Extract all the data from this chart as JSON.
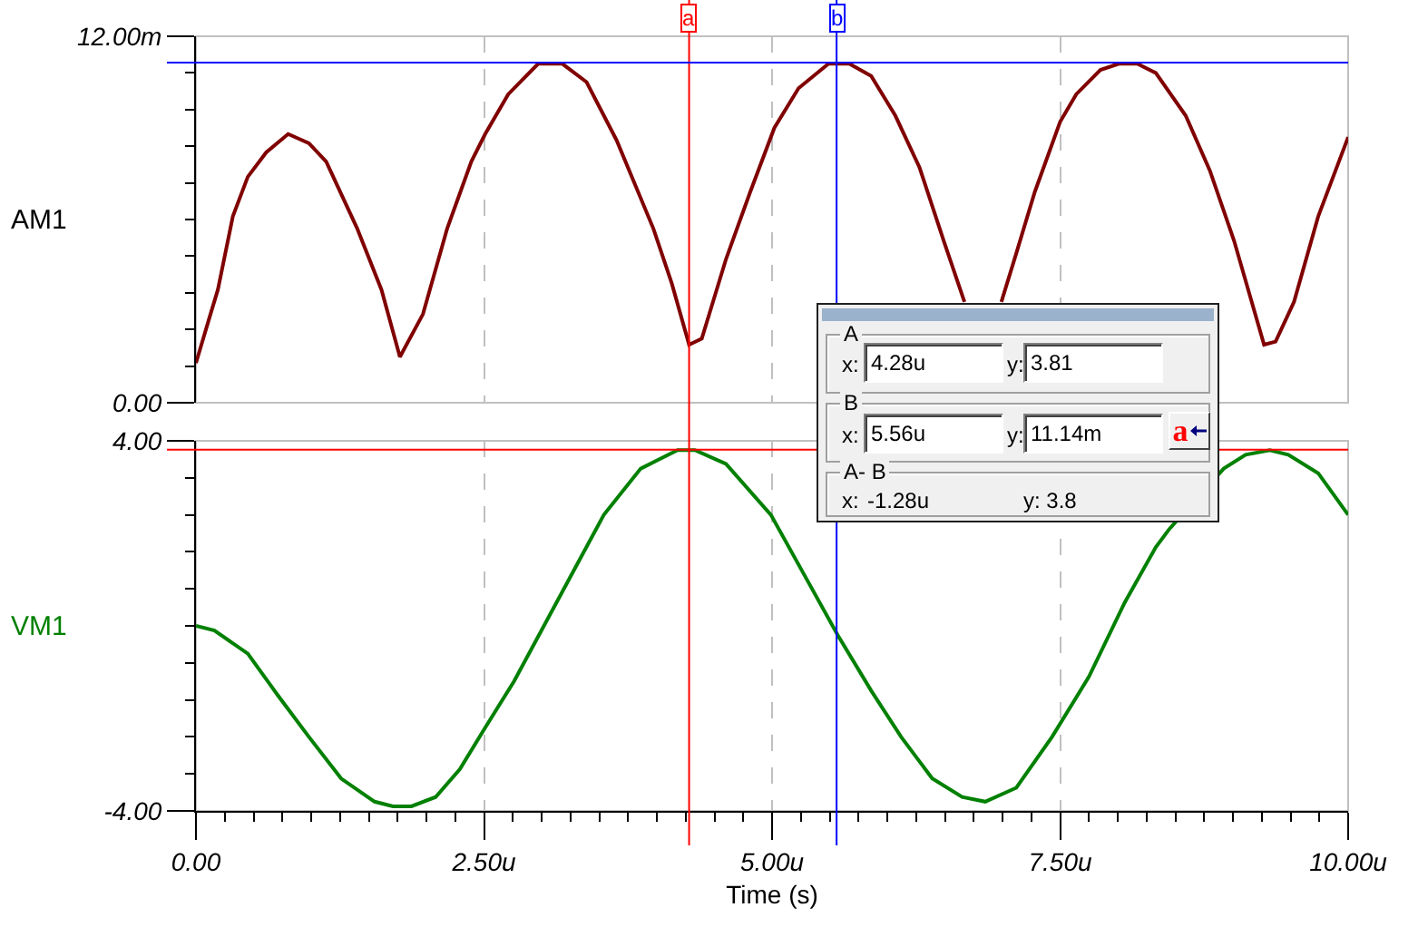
{
  "chart_data": [
    {
      "type": "line",
      "ylabel": "AM1",
      "x": [
        0,
        0.11,
        0.19,
        0.32,
        0.45,
        0.61,
        0.8,
        0.98,
        1.13,
        1.4,
        1.61,
        1.77,
        1.97,
        2.18,
        2.39,
        2.51,
        2.71,
        2.97,
        3.08,
        3.18,
        3.39,
        3.65,
        3.97,
        4.13,
        4.28,
        4.39,
        4.6,
        4.81,
        5.02,
        5.23,
        5.49,
        5.58,
        5.67,
        5.86,
        6.07,
        6.28,
        6.49,
        6.67,
        6.83,
        6.99,
        7.12,
        7.28,
        7.5,
        7.64,
        7.85,
        8.01,
        8.09,
        8.17,
        8.33,
        8.59,
        8.8,
        9.01,
        9.27,
        9.37,
        9.53,
        9.74,
        10
      ],
      "series": [
        {
          "color": "#800000",
          "values": [
            1.3,
            2.7,
            3.7,
            6.1,
            7.4,
            8.2,
            8.8,
            8.5,
            7.9,
            5.7,
            3.7,
            1.5,
            2.9,
            5.7,
            7.9,
            8.8,
            10.1,
            11.1,
            11.1,
            11.1,
            10.5,
            8.6,
            5.7,
            3.9,
            1.9,
            2.1,
            4.7,
            6.9,
            9.0,
            10.3,
            11.1,
            11.1,
            11.1,
            10.7,
            9.4,
            7.7,
            5.3,
            3.3,
            null,
            3.3,
            4.9,
            6.9,
            9.2,
            10.1,
            10.9,
            11.1,
            11.1,
            11.1,
            10.8,
            9.4,
            7.6,
            5.3,
            1.9,
            2.0,
            3.3,
            6.1,
            8.7
          ]
        }
      ],
      "xlim": [
        0,
        10
      ],
      "xticks": [
        {
          "value": 0,
          "label": null
        },
        {
          "value": 2.5,
          "label": null
        },
        {
          "value": 5,
          "label": null
        },
        {
          "value": 7.5,
          "label": null
        },
        {
          "value": 10,
          "label": null
        }
      ],
      "ylim": [
        0,
        12
      ],
      "yticks": [
        {
          "value": 0,
          "label": "0.00"
        },
        {
          "value": 1.2,
          "label": null
        },
        {
          "value": 2.4,
          "label": null
        },
        {
          "value": 3.6,
          "label": null
        },
        {
          "value": 4.8,
          "label": null
        },
        {
          "value": 6,
          "label": null
        },
        {
          "value": 7.2,
          "label": null
        },
        {
          "value": 8.4,
          "label": null
        },
        {
          "value": 9.6,
          "label": null
        },
        {
          "value": 10.8,
          "label": null
        },
        {
          "value": 12,
          "label": "12.00m"
        }
      ],
      "grid": "x",
      "tick_labels": "y",
      "ref_lines": [
        {
          "axis": "x",
          "value": 4.28,
          "label": "a",
          "color": "#ff0000"
        },
        {
          "axis": "x",
          "value": 5.56,
          "label": "b",
          "color": "#0000ff"
        },
        {
          "axis": "y",
          "value": 11.14,
          "color": "#0000ff"
        }
      ],
      "annotations": [
        "A",
        "x:",
        "4.28u",
        "y:",
        "3.81",
        "B",
        "x:",
        "5.56u",
        "y:",
        "11.14m",
        "a",
        "A- B",
        "x:",
        "-1.28u",
        "y: 3.8"
      ]
    },
    {
      "type": "line",
      "xlabel": "Time (s)",
      "x": [
        0,
        0.16,
        0.45,
        0.71,
        0.98,
        1.26,
        1.55,
        1.71,
        1.87,
        2.08,
        2.29,
        2.51,
        2.76,
        3.02,
        3.28,
        3.54,
        3.86,
        4.18,
        4.33,
        4.6,
        4.99,
        5.28,
        5.57,
        5.86,
        6.12,
        6.39,
        6.65,
        6.85,
        7.12,
        7.43,
        7.75,
        8.06,
        8.33,
        8.45,
        8.92,
        9.11,
        9.32,
        9.48,
        9.74,
        10
      ],
      "series": [
        {
          "name": "VM1",
          "color": "#008000",
          "values": [
            0,
            -0.1,
            -0.6,
            -1.5,
            -2.4,
            -3.3,
            -3.8,
            -3.9,
            -3.9,
            -3.7,
            -3.1,
            -2.2,
            -1.2,
            0,
            1.2,
            2.4,
            3.4,
            3.8,
            3.8,
            3.5,
            2.4,
            1.1,
            -0.2,
            -1.4,
            -2.4,
            -3.3,
            -3.7,
            -3.8,
            -3.5,
            -2.4,
            -1.1,
            0.5,
            1.7,
            2.1,
            3.4,
            3.7,
            3.8,
            3.7,
            3.3,
            2.4
          ]
        }
      ],
      "xlim": [
        0,
        10
      ],
      "xticks": [
        {
          "value": 0,
          "label": "0.00"
        },
        {
          "value": 0.25,
          "label": null
        },
        {
          "value": 0.5,
          "label": null
        },
        {
          "value": 0.75,
          "label": null
        },
        {
          "value": 1,
          "label": null
        },
        {
          "value": 1.25,
          "label": null
        },
        {
          "value": 1.5,
          "label": null
        },
        {
          "value": 1.75,
          "label": null
        },
        {
          "value": 2,
          "label": null
        },
        {
          "value": 2.25,
          "label": null
        },
        {
          "value": 2.5,
          "label": "2.50u"
        },
        {
          "value": 2.75,
          "label": null
        },
        {
          "value": 3,
          "label": null
        },
        {
          "value": 3.25,
          "label": null
        },
        {
          "value": 3.5,
          "label": null
        },
        {
          "value": 3.75,
          "label": null
        },
        {
          "value": 4,
          "label": null
        },
        {
          "value": 4.25,
          "label": null
        },
        {
          "value": 4.5,
          "label": null
        },
        {
          "value": 4.75,
          "label": null
        },
        {
          "value": 5,
          "label": "5.00u"
        },
        {
          "value": 5.25,
          "label": null
        },
        {
          "value": 5.5,
          "label": null
        },
        {
          "value": 5.75,
          "label": null
        },
        {
          "value": 6,
          "label": null
        },
        {
          "value": 6.25,
          "label": null
        },
        {
          "value": 6.5,
          "label": null
        },
        {
          "value": 6.75,
          "label": null
        },
        {
          "value": 7,
          "label": null
        },
        {
          "value": 7.25,
          "label": null
        },
        {
          "value": 7.5,
          "label": "7.50u"
        },
        {
          "value": 7.75,
          "label": null
        },
        {
          "value": 8,
          "label": null
        },
        {
          "value": 8.25,
          "label": null
        },
        {
          "value": 8.5,
          "label": null
        },
        {
          "value": 8.75,
          "label": null
        },
        {
          "value": 9,
          "label": null
        },
        {
          "value": 9.25,
          "label": null
        },
        {
          "value": 9.5,
          "label": null
        },
        {
          "value": 9.75,
          "label": null
        },
        {
          "value": 10,
          "label": "10.00u"
        }
      ],
      "ylim": [
        -4,
        4
      ],
      "yticks": [
        {
          "value": -4,
          "label": "-4.00"
        },
        {
          "value": -3.2,
          "label": null
        },
        {
          "value": -2.4,
          "label": null
        },
        {
          "value": -1.6,
          "label": null
        },
        {
          "value": -0.8,
          "label": null
        },
        {
          "value": 0,
          "label": null
        },
        {
          "value": 0.8,
          "label": null
        },
        {
          "value": 1.6,
          "label": null
        },
        {
          "value": 2.4,
          "label": null
        },
        {
          "value": 3.2,
          "label": null
        },
        {
          "value": 4,
          "label": "4.00"
        }
      ],
      "grid": "x",
      "ref_lines": [
        {
          "axis": "x",
          "value": 4.28,
          "color": "#ff0000"
        },
        {
          "axis": "x",
          "value": 5.56,
          "color": "#0000ff"
        },
        {
          "axis": "y",
          "value": 3.81,
          "color": "#ff0000"
        }
      ]
    }
  ]
}
